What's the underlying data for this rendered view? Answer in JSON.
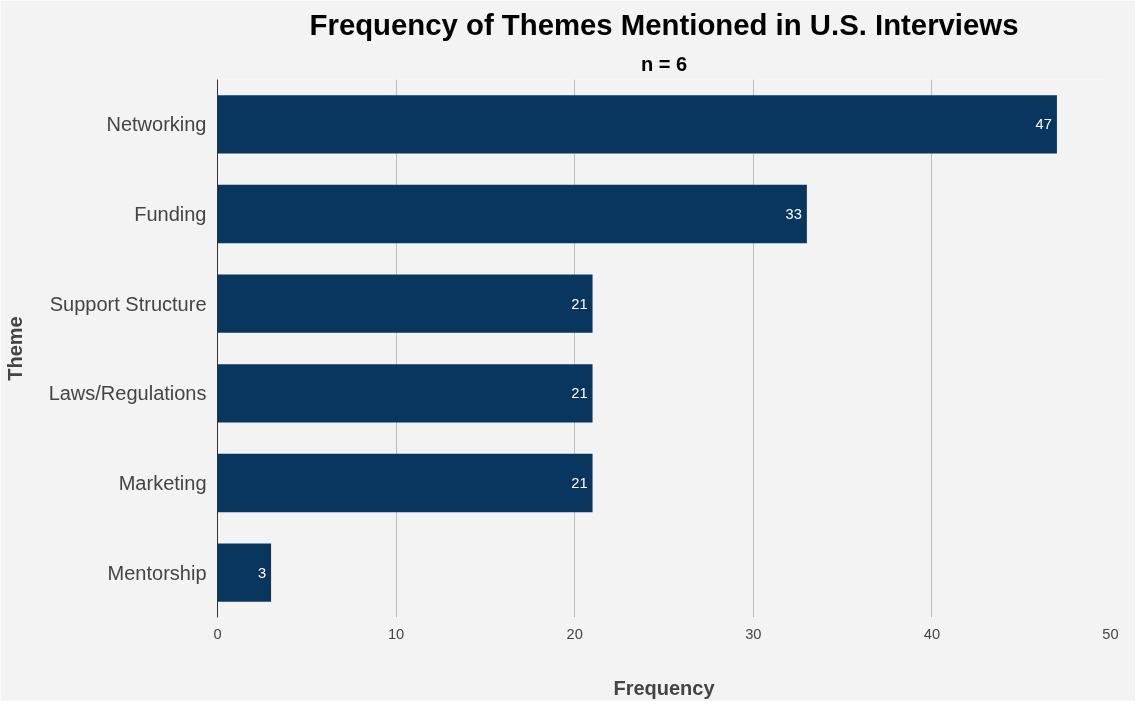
{
  "chart_data": {
    "type": "bar",
    "orientation": "horizontal",
    "title": "Frequency of Themes Mentioned in U.S. Interviews",
    "subtitle": "n = 6",
    "xlabel": "Frequency",
    "ylabel": "Theme",
    "categories": [
      "Networking",
      "Funding",
      "Support Structure",
      "Laws/Regulations",
      "Marketing",
      "Mentorship"
    ],
    "values": [
      47,
      33,
      21,
      21,
      21,
      3
    ],
    "color": "#08365f",
    "xlim": [
      0,
      50
    ],
    "xticks": [
      0,
      10,
      20,
      30,
      40,
      50
    ],
    "grid": "x",
    "data_labels": true
  }
}
